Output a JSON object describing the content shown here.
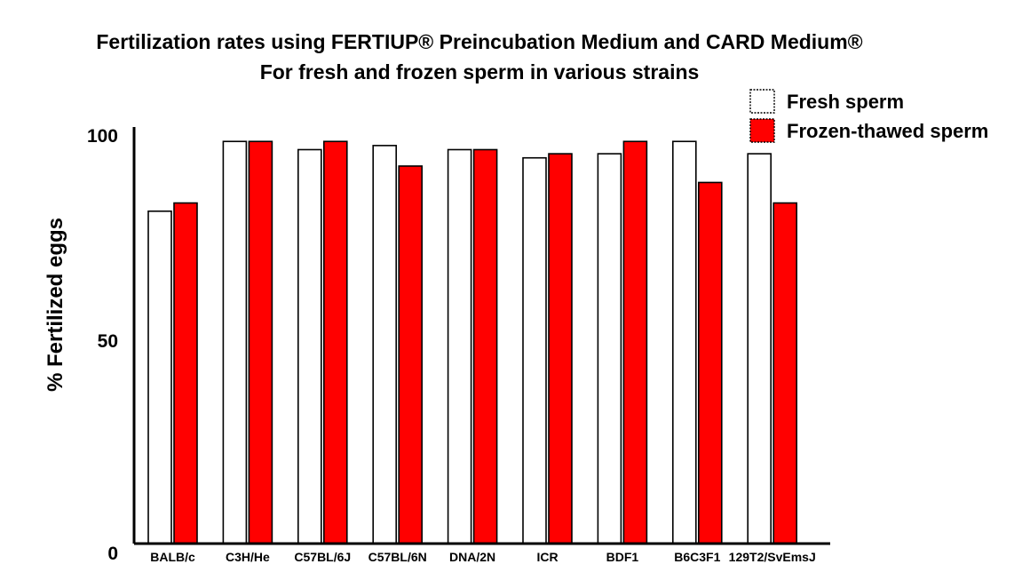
{
  "chart_data": {
    "type": "bar",
    "title": "Fertilization rates using FERTIUP® Preincubation Medium and CARD Medium®",
    "subtitle": "For fresh and frozen sperm in various strains",
    "xlabel": "",
    "ylabel": "% Fertilized eggs",
    "ylim": [
      0,
      100
    ],
    "yticks": [
      "0",
      "50",
      "100"
    ],
    "categories": [
      "BALB/c",
      "C3H/He",
      "C57BL/6J",
      "C57BL/6N",
      "DNA/2N",
      "ICR",
      "BDF1",
      "B6C3F1",
      "129T2/SvEmsJ"
    ],
    "series": [
      {
        "name": "Fresh sperm",
        "color": "#ffffff",
        "values": [
          81,
          98,
          96,
          97,
          96,
          94,
          95,
          98,
          95
        ]
      },
      {
        "name": "Frozen-thawed sperm",
        "color": "#ff0000",
        "values": [
          83,
          98,
          98,
          92,
          96,
          95,
          98,
          88,
          83
        ]
      }
    ],
    "legend_position": "top-right",
    "grid": false
  }
}
